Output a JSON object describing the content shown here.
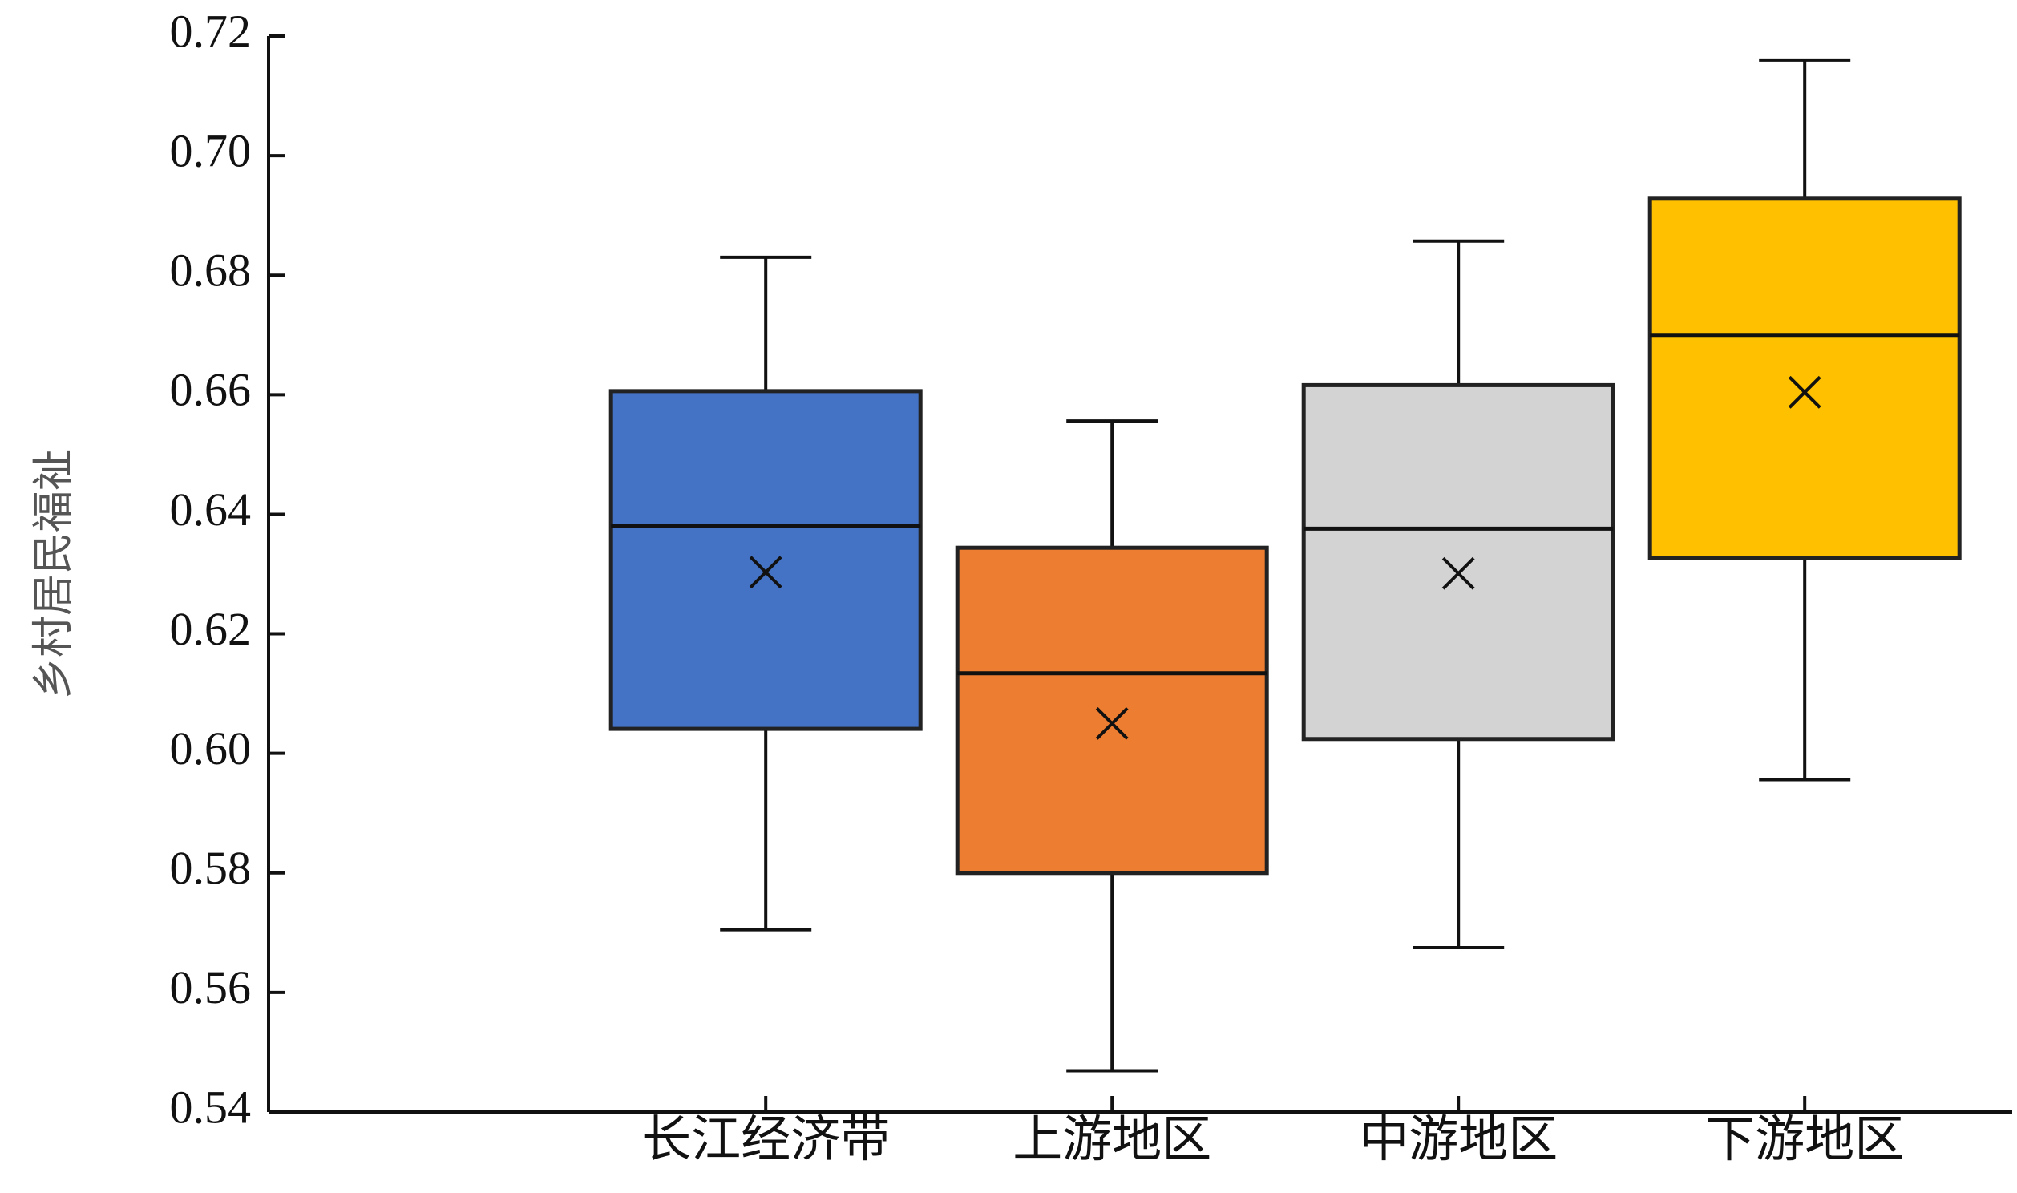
{
  "chart_data": {
    "type": "box",
    "y_label": "乡村居民福祉",
    "categories": [
      "长江经济带",
      "上游地区",
      "中游地区",
      "下游地区"
    ],
    "boxes": [
      {
        "min": 0.5705,
        "q1": 0.6041,
        "median": 0.638,
        "q3": 0.6606,
        "max": 0.683,
        "mean": 0.6303,
        "color": "#4472c4"
      },
      {
        "min": 0.5469,
        "q1": 0.58,
        "median": 0.6134,
        "q3": 0.6344,
        "max": 0.6556,
        "mean": 0.605,
        "color": "#ed7d31"
      },
      {
        "min": 0.5675,
        "q1": 0.6024,
        "median": 0.6376,
        "q3": 0.6616,
        "max": 0.6857,
        "mean": 0.6301,
        "color": "#d3d3d3"
      },
      {
        "min": 0.5956,
        "q1": 0.6327,
        "median": 0.67,
        "q3": 0.6928,
        "max": 0.716,
        "mean": 0.6604,
        "color": "#ffc000"
      }
    ],
    "ylim": [
      0.54,
      0.72
    ],
    "yticks": [
      0.54,
      0.56,
      0.58,
      {
        "value": 0.6,
        "label": "0.60"
      },
      0.62,
      0.64,
      0.66,
      0.68,
      {
        "value": 0.7,
        "label": "0.70"
      },
      0.72
    ]
  }
}
